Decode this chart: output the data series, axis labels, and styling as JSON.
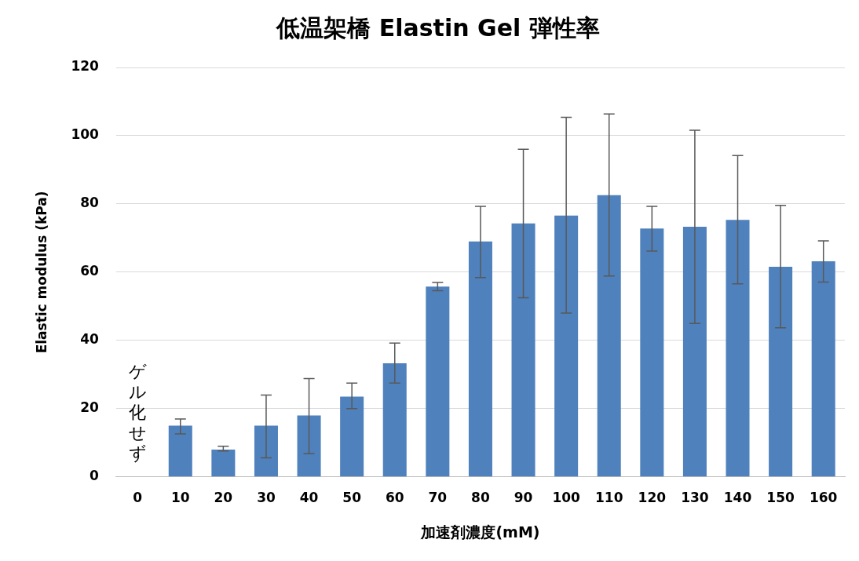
{
  "chart_data": {
    "type": "bar",
    "title": "低温架橋 Elastin Gel 弾性率",
    "xlabel": "加速剤濃度(mM)",
    "ylabel": "Elastic modulus (kPa)",
    "categories": [
      "0",
      "10",
      "20",
      "30",
      "40",
      "50",
      "60",
      "70",
      "80",
      "90",
      "100",
      "110",
      "120",
      "130",
      "140",
      "150",
      "160"
    ],
    "values": [
      null,
      15,
      8,
      15,
      18,
      23.5,
      33.3,
      55.8,
      69,
      74.3,
      76.6,
      82.6,
      72.8,
      73.3,
      75.3,
      61.6,
      63.2
    ],
    "errors": [
      null,
      [
        12.6,
        17
      ],
      [
        7.6,
        9
      ],
      [
        5.6,
        24
      ],
      [
        6.8,
        28.8
      ],
      [
        20,
        27.5
      ],
      [
        27.5,
        39.2
      ],
      [
        54.6,
        57
      ],
      [
        58.4,
        79.3
      ],
      [
        52.5,
        96
      ],
      [
        48,
        105.4
      ],
      [
        58.9,
        106.4
      ],
      [
        66.2,
        79.3
      ],
      [
        45,
        101.6
      ],
      [
        56.6,
        94.2
      ],
      [
        43.7,
        79.6
      ],
      [
        57.1,
        69.2
      ]
    ],
    "color": "#4f81bd",
    "ylim": [
      0,
      120
    ],
    "yticks": [
      0,
      20,
      40,
      60,
      80,
      100,
      120
    ],
    "grid": "y",
    "legend": false,
    "annotations": [
      "ゲル化せず"
    ]
  }
}
